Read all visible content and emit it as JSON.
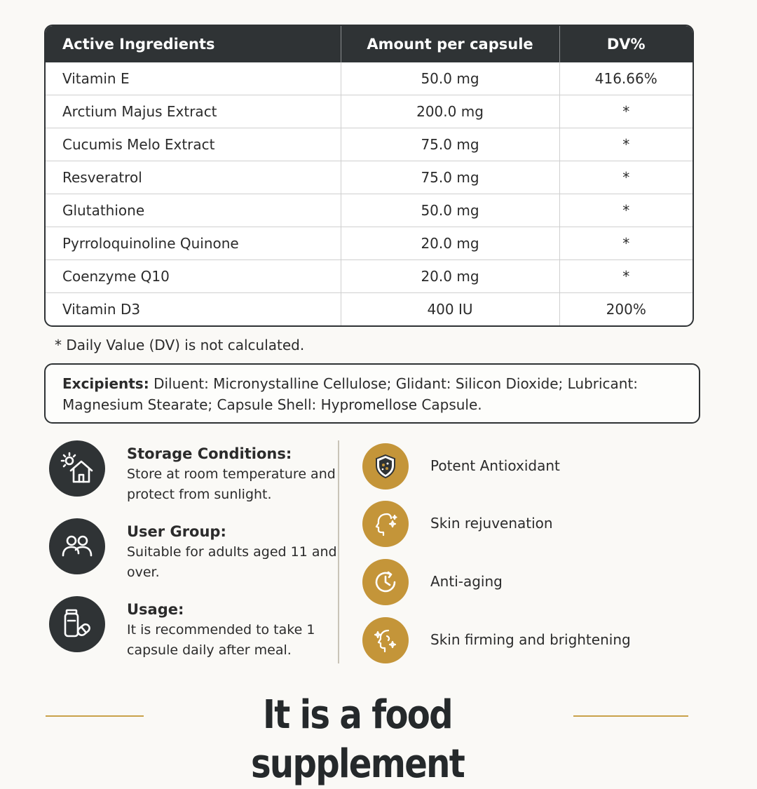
{
  "table": {
    "headers": [
      "Active Ingredients",
      "Amount per capsule",
      "DV%"
    ],
    "rows": [
      [
        "Vitamin E",
        "50.0 mg",
        "416.66%"
      ],
      [
        "Arctium Majus Extract",
        "200.0 mg",
        "*"
      ],
      [
        "Cucumis Melo Extract",
        "75.0 mg",
        "*"
      ],
      [
        "Resveratrol",
        "75.0 mg",
        "*"
      ],
      [
        "Glutathione",
        "50.0 mg",
        "*"
      ],
      [
        "Pyrroloquinoline Quinone",
        "20.0 mg",
        "*"
      ],
      [
        "Coenzyme Q10",
        "20.0 mg",
        "*"
      ],
      [
        "Vitamin D3",
        "400 IU",
        "200%"
      ]
    ]
  },
  "footnote": "* Daily Value (DV) is not calculated.",
  "excipients": {
    "label": "Excipients:",
    "text": "Diluent: Micronystalline Cellulose; Glidant: Silicon Dioxide; Lubricant: Magnesium Stearate; Capsule Shell: Hypromellose Capsule."
  },
  "info": [
    {
      "icon": "house-sun-icon",
      "title": "Storage Conditions:",
      "body": "Store at room temperature and protect from sunlight."
    },
    {
      "icon": "users-icon",
      "title": "User Group:",
      "body": "Suitable for adults aged 11 and over."
    },
    {
      "icon": "capsule-bottle-icon",
      "title": "Usage:",
      "body": "It is recommended to take 1 capsule daily after meal."
    }
  ],
  "benefits": [
    {
      "icon": "shield-icon",
      "label": "Potent Antioxidant"
    },
    {
      "icon": "face-sparkle-icon",
      "label": "Skin rejuvenation"
    },
    {
      "icon": "clock-icon",
      "label": "Anti-aging"
    },
    {
      "icon": "face-glow-icon",
      "label": "Skin firming and brightening"
    }
  ],
  "slogan": "It is a food supplement",
  "colors": {
    "dark": "#2f3335",
    "gold": "#c49539",
    "background": "#faf9f6"
  }
}
